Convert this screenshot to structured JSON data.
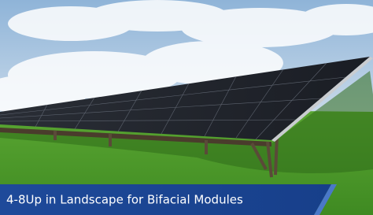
{
  "caption": "4-8Up in Landscape for Bifacial Modules"
}
